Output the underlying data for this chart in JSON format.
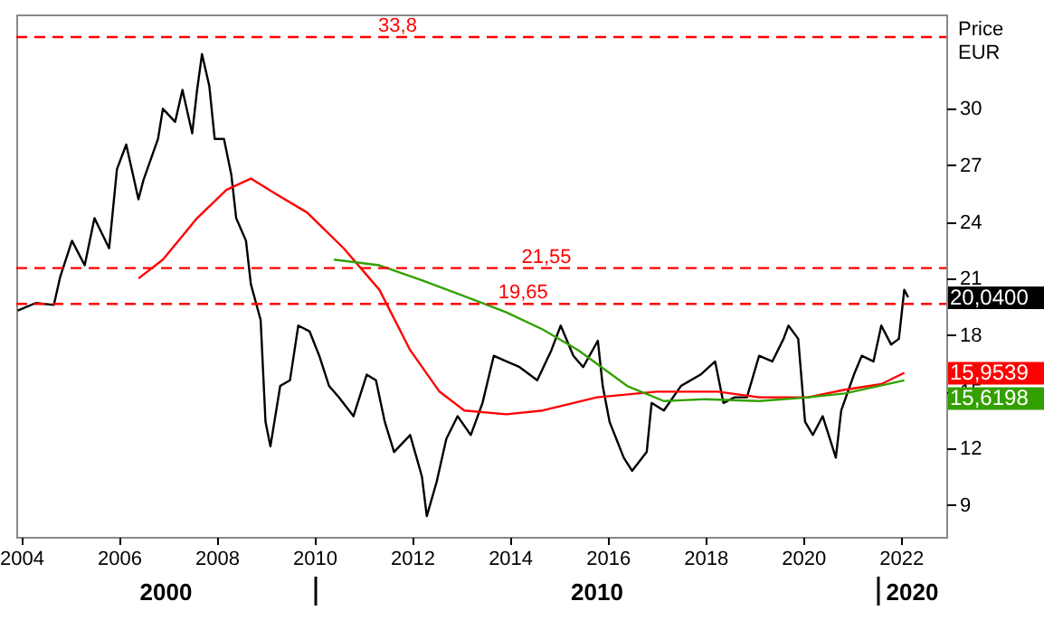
{
  "chart_data": {
    "type": "line",
    "ylabel": "Price EUR",
    "xlim": [
      2003.9,
      2022.93
    ],
    "xticks": [
      2004,
      2006,
      2008,
      2010,
      2012,
      2014,
      2016,
      2018,
      2020,
      2022
    ],
    "ylim": [
      7.3,
      35.0
    ],
    "yticks": [
      9,
      12,
      15,
      18,
      21,
      24,
      27,
      30
    ],
    "grid": false,
    "series": [
      {
        "color": "#000000",
        "x": [
          2003.93,
          2004.3,
          2004.67,
          2004.8,
          2005.04,
          2005.3,
          2005.5,
          2005.8,
          2005.96,
          2006.15,
          2006.4,
          2006.5,
          2006.8,
          2006.9,
          2007.15,
          2007.3,
          2007.5,
          2007.6,
          2007.7,
          2007.85,
          2007.96,
          2008.15,
          2008.3,
          2008.4,
          2008.6,
          2008.7,
          2008.9,
          2009.0,
          2009.1,
          2009.3,
          2009.5,
          2009.67,
          2009.9,
          2010.1,
          2010.3,
          2010.5,
          2010.8,
          2011.07,
          2011.26,
          2011.44,
          2011.63,
          2011.96,
          2012.2,
          2012.3,
          2012.5,
          2012.7,
          2012.93,
          2013.2,
          2013.44,
          2013.67,
          2013.93,
          2014.2,
          2014.56,
          2014.85,
          2015.04,
          2015.3,
          2015.5,
          2015.8,
          2015.9,
          2016.04,
          2016.33,
          2016.5,
          2016.8,
          2016.9,
          2017.15,
          2017.5,
          2017.9,
          2018.2,
          2018.37,
          2018.6,
          2018.85,
          2019.1,
          2019.37,
          2019.6,
          2019.7,
          2019.9,
          2020.04,
          2020.2,
          2020.4,
          2020.67,
          2020.78,
          2021.04,
          2021.2,
          2021.44,
          2021.6,
          2021.8,
          2021.96,
          2022.07,
          2022.15
        ],
        "values": [
          19.3,
          19.7,
          19.6,
          21.1,
          23.0,
          21.7,
          24.2,
          22.6,
          26.8,
          28.1,
          25.2,
          26.2,
          28.4,
          30.0,
          29.3,
          31.0,
          28.7,
          31.0,
          32.9,
          31.2,
          28.4,
          28.4,
          26.5,
          24.2,
          23.0,
          20.7,
          18.8,
          13.4,
          12.1,
          15.3,
          15.6,
          18.5,
          18.2,
          16.9,
          15.3,
          14.7,
          13.7,
          15.9,
          15.6,
          13.4,
          11.8,
          12.7,
          10.5,
          8.4,
          10.2,
          12.5,
          13.7,
          12.7,
          14.4,
          16.9,
          16.6,
          16.3,
          15.6,
          17.2,
          18.5,
          16.9,
          16.3,
          17.7,
          15.3,
          13.4,
          11.5,
          10.8,
          11.8,
          14.4,
          14.0,
          15.3,
          15.9,
          16.6,
          14.4,
          14.7,
          14.7,
          16.9,
          16.6,
          17.8,
          18.5,
          17.8,
          13.4,
          12.7,
          13.7,
          11.5,
          14.0,
          15.9,
          16.9,
          16.6,
          18.5,
          17.5,
          17.8,
          20.4,
          20.0
        ]
      },
      {
        "color": "#ff0000",
        "x": [
          2006.4,
          2006.9,
          2007.6,
          2008.2,
          2008.7,
          2009.2,
          2009.85,
          2010.6,
          2011.33,
          2011.96,
          2012.56,
          2013.07,
          2013.93,
          2014.67,
          2015.78,
          2017.0,
          2018.26,
          2019.1,
          2020.1,
          2020.85,
          2021.6,
          2022.07
        ],
        "values": [
          21.0,
          22.0,
          24.2,
          25.7,
          26.3,
          25.5,
          24.5,
          22.6,
          20.4,
          17.2,
          15.0,
          14.0,
          13.8,
          14.0,
          14.7,
          15.0,
          15.0,
          14.7,
          14.7,
          15.1,
          15.4,
          16.0
        ]
      },
      {
        "color": "#33a000",
        "x": [
          2010.4,
          2011.33,
          2012.2,
          2013.44,
          2013.93,
          2014.67,
          2015.4,
          2016.4,
          2017.15,
          2018.0,
          2019.1,
          2020.1,
          2020.85,
          2022.07
        ],
        "values": [
          22.0,
          21.7,
          20.9,
          19.7,
          19.2,
          18.3,
          17.2,
          15.3,
          14.5,
          14.6,
          14.5,
          14.7,
          14.9,
          15.6
        ]
      }
    ],
    "ref_lines": [
      {
        "axis": "y",
        "value": 33.8,
        "label": "33,8",
        "color": "#ff0000",
        "line_style": "dashed"
      },
      {
        "axis": "y",
        "value": 21.55,
        "label": "21,55",
        "color": "#ff0000",
        "line_style": "dashed"
      },
      {
        "axis": "y",
        "value": 19.65,
        "label": "19,65",
        "color": "#ff0000",
        "line_style": "dashed"
      }
    ],
    "annotations": [
      "20,0400",
      "15,9539",
      "15,6198",
      "2000",
      "2010",
      "2020"
    ]
  }
}
